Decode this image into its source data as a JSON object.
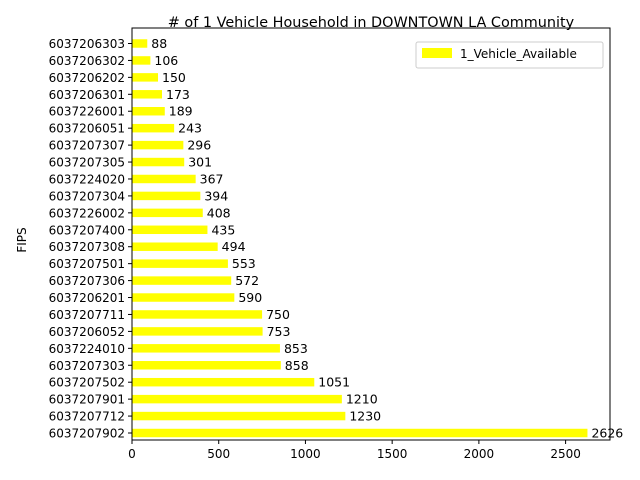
{
  "chart_data": {
    "type": "bar",
    "orientation": "horizontal",
    "title": "# of 1 Vehicle Household in DOWNTOWN LA Community",
    "xlabel": "",
    "ylabel": "FIPS",
    "xlim": [
      0,
      2756
    ],
    "xticks": [
      0,
      500,
      1000,
      1500,
      2000,
      2500
    ],
    "categories": [
      "6037207902",
      "6037207712",
      "6037207901",
      "6037207502",
      "6037207303",
      "6037224010",
      "6037206052",
      "6037207711",
      "6037206201",
      "6037207306",
      "6037207501",
      "6037207308",
      "6037207400",
      "6037226002",
      "6037207304",
      "6037224020",
      "6037207305",
      "6037207307",
      "6037206051",
      "6037226001",
      "6037206301",
      "6037206202",
      "6037206302",
      "6037206303"
    ],
    "series": [
      {
        "name": "1_Vehicle_Available",
        "color": "#ffff00",
        "values": [
          2626,
          1230,
          1210,
          1051,
          858,
          853,
          753,
          750,
          590,
          572,
          553,
          494,
          435,
          408,
          394,
          367,
          301,
          296,
          243,
          189,
          173,
          150,
          106,
          88
        ]
      }
    ],
    "legend_position": "top-right",
    "grid": false
  }
}
